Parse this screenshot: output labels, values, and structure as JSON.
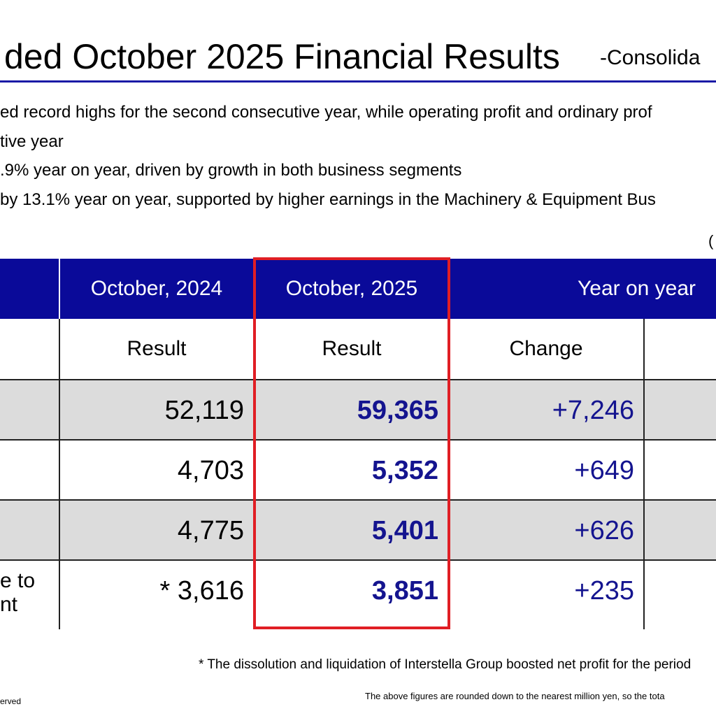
{
  "title": {
    "main": "ded October 2025 Financial Results",
    "sub": "-Consolida"
  },
  "bullets": [
    "ed record highs for the second consecutive year, while operating profit and ordinary prof",
    "tive year",
    ".9% year on year, driven by growth in both business segments",
    "by 13.1% year on year, supported by higher earnings in the Machinery & Equipment Bus"
  ],
  "unit_label": "(",
  "table": {
    "header": {
      "prev": "October, 2024",
      "cur": "October, 2025",
      "yoy": "Year on year"
    },
    "subheader": {
      "prev": "Result",
      "cur": "Result",
      "chg": "Change"
    },
    "rows": [
      {
        "label": "",
        "prev": "52,119",
        "cur": "59,365",
        "chg": "+7,246"
      },
      {
        "label": "",
        "prev": "4,703",
        "cur": "5,352",
        "chg": "+649"
      },
      {
        "label": "",
        "prev": "4,775",
        "cur": "5,401",
        "chg": "+626"
      },
      {
        "label_line1": "e to",
        "label_line2": "nt",
        "prev": "* 3,616",
        "cur": "3,851",
        "chg": "+235"
      }
    ]
  },
  "footnote": "* The dissolution and liquidation of Interstella Group boosted net profit for the period",
  "note": "The above figures are rounded down to the nearest million yen, so the tota",
  "copyright": "erved",
  "colors": {
    "header_bg": "#0a0a99",
    "accent_text": "#14148f",
    "highlight_border": "#e01e24",
    "row_shade": "#dcdcdc"
  }
}
